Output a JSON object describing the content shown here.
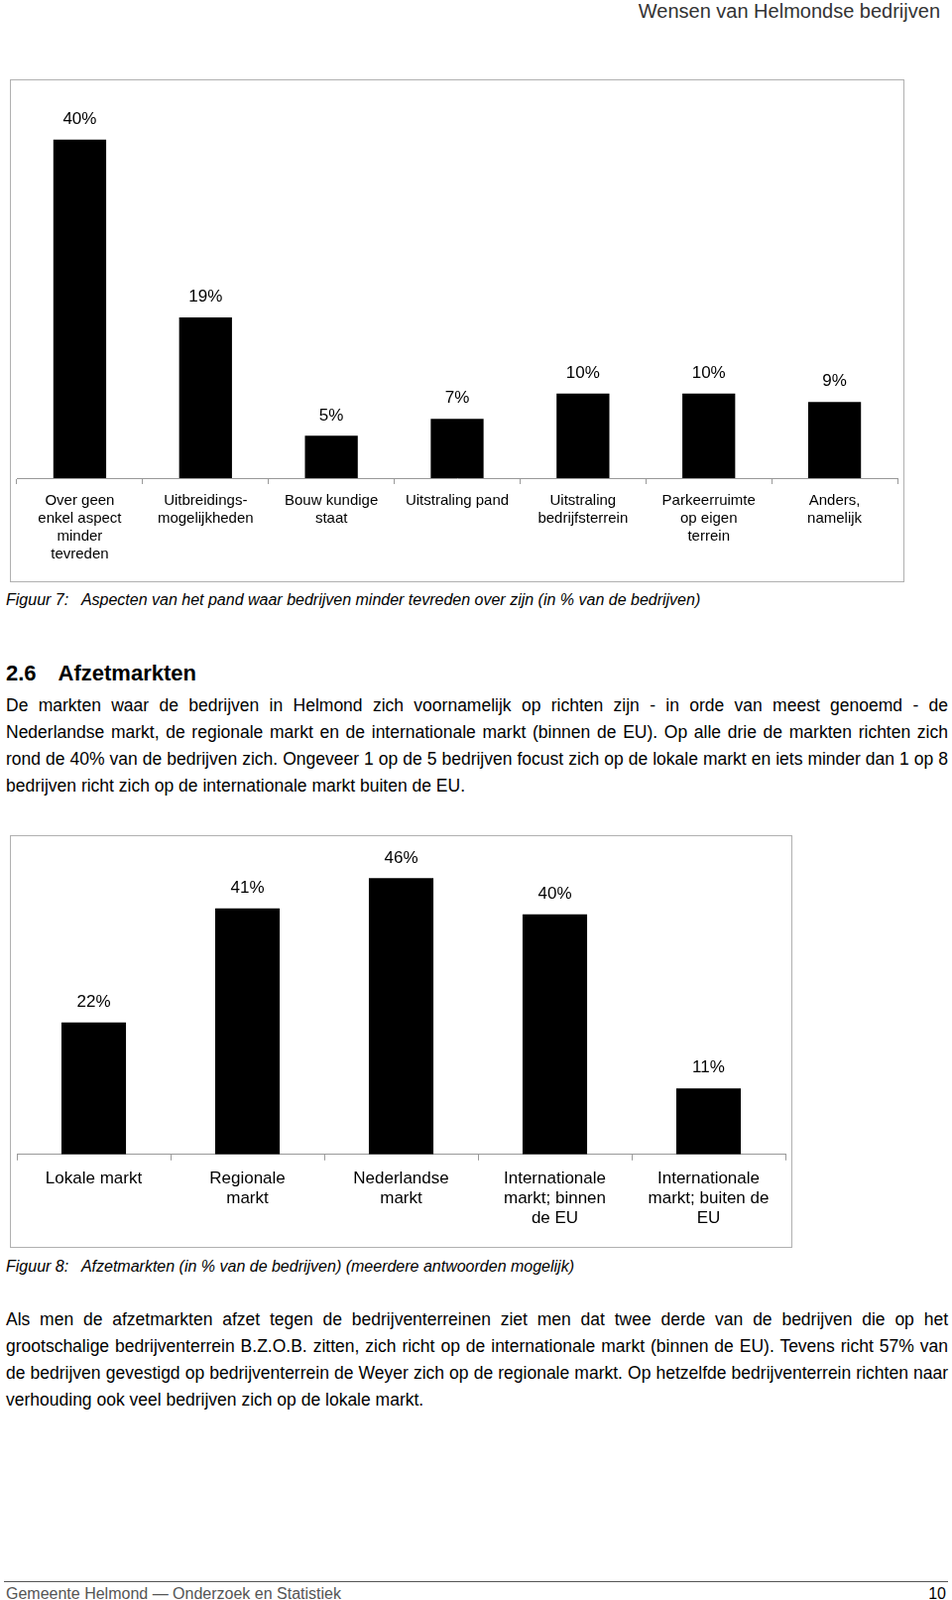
{
  "header": "Wensen van Helmondse bedrijven",
  "chart_data": [
    {
      "type": "bar",
      "title": "Figuur 7:   Aspecten van het pand waar bedrijven minder tevreden over zijn (in % van de bedrijven)",
      "categories": [
        "Over geen\nenkel aspect\nminder\ntevreden",
        "Uitbreidings-\nmogelijkheden",
        "Bouw kundige\nstaat",
        "Uitstraling pand",
        "Uitstraling\nbedrijfsterrein",
        "Parkeerruimte\nop eigen\nterrein",
        "Anders,\nnamelijk"
      ],
      "values": [
        40,
        19,
        5,
        7,
        10,
        10,
        9
      ],
      "value_labels": [
        "40%",
        "19%",
        "5%",
        "7%",
        "10%",
        "10%",
        "9%"
      ],
      "color": "#000000",
      "ylim": [
        0,
        47
      ],
      "data_labels": true,
      "tick_labels": "x",
      "grid": false
    },
    {
      "type": "bar",
      "title": "Figuur 8:   Afzetmarkten (in % van de bedrijven) (meerdere antwoorden mogelijk)",
      "categories": [
        "Lokale markt",
        "Regionale\nmarkt",
        "Nederlandse\nmarkt",
        "Internationale\nmarkt; binnen\nde EU",
        "Internationale\nmarkt; buiten de\nEU"
      ],
      "values": [
        22,
        41,
        46,
        40,
        11
      ],
      "value_labels": [
        "22%",
        "41%",
        "46%",
        "40%",
        "11%"
      ],
      "color": "#000000",
      "ylim": [
        0,
        53
      ],
      "data_labels": true,
      "tick_labels": "x",
      "grid": false
    }
  ],
  "section": {
    "number": "2.6",
    "heading": "Afzetmarkten",
    "paragraph": "De markten waar de bedrijven in Helmond zich voornamelijk op richten zijn - in orde van meest genoemd - de Nederlandse markt, de regionale markt en de internationale markt (binnen de EU). Op alle drie de markten richten zich rond de 40% van de bedrijven zich. Ongeveer 1 op de 5 bedrijven focust zich op de lokale markt en iets minder dan 1 op 8 bedrijven richt zich op de internationale markt buiten de EU.",
    "paragraph_after_figure": "Als men de afzetmarkten afzet tegen de bedrijventerreinen ziet men dat twee derde van de bedrijven die op het grootschalige bedrijventerrein B.Z.O.B. zitten, zich richt op de internationale markt (binnen de EU). Tevens richt 57% van de bedrijven gevestigd op bedrijventerrein de Weyer zich op de regionale markt. Op hetzelfde bedrijventerrein richten naar verhouding ook veel bedrijven zich op de lokale markt."
  },
  "footer": {
    "left": "Gemeente Helmond — Onderzoek en Statistiek",
    "page": 10
  }
}
